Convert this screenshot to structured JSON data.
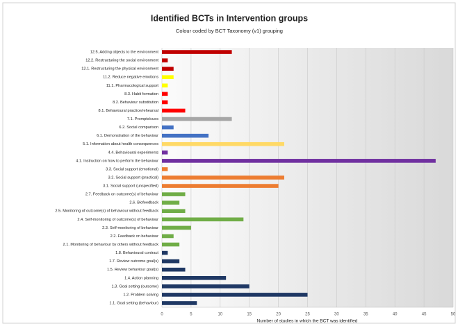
{
  "chart_data": {
    "type": "bar",
    "orientation": "horizontal",
    "title": "Identified BCTs in Intervention groups",
    "subtitle": "Colour coded by BCT Taxonomy (v1) grouping",
    "x_label": "Number of studies in which the BCT was identified",
    "categories": [
      "12.5. Adding objects to the environment",
      "12.2. Restructuring the social environment",
      "12.1. Restructuring the physical environment",
      "11.2. Reduce negative emotions",
      "11.1. Pharmacological support",
      "8.3. Habit formation",
      "8.2. Behaviour substitution",
      "8.1. Behavioural practice/rehearsal",
      "7.1. Prompts/cues",
      "6.2. Social comparison",
      "6.1. Demonstration of the behaviour",
      "5.1. Information about health consequences",
      "4.4. Behavioural experiments",
      "4.1. Instruction on how to perform the behaviour",
      "3.3. Social support (emotional)",
      "3.2. Social support (practical)",
      "3.1. Social support (unspecified)",
      "2.7. Feedback on outcome(s) of behaviour",
      "2.6. Biofeedback",
      "2.5. Monitoring of outcome(s) of behaviour without feedback",
      "2.4. Self-monitoring of outcome(s) of behaviour",
      "2.3. Self-monitoring of behaviour",
      "2.2. Feedback on behaviour",
      "2.1. Monitoring of behaviour by others without feedback",
      "1.8. Behavioural contract",
      "1.7. Review outcome goal(s)",
      "1.5. Review behaviour goal(s)",
      "1.4. Action planning",
      "1.3. Goal setting (outcome)",
      "1.2. Problem solving",
      "1.1. Goal setting (behaviour)"
    ],
    "values": [
      12,
      1,
      2,
      2,
      1,
      1,
      1,
      4,
      12,
      2,
      8,
      21,
      1,
      47,
      1,
      21,
      20,
      4,
      3,
      4,
      14,
      5,
      2,
      3,
      1,
      3,
      4,
      11,
      15,
      25,
      6
    ],
    "colors": [
      "#c00000",
      "#c00000",
      "#c00000",
      "#ffff00",
      "#ffff00",
      "#ff0000",
      "#ff0000",
      "#ff0000",
      "#a6a6a6",
      "#4472c4",
      "#4472c4",
      "#ffd966",
      "#7030a0",
      "#7030a0",
      "#ed7d31",
      "#ed7d31",
      "#ed7d31",
      "#70ad47",
      "#70ad47",
      "#70ad47",
      "#70ad47",
      "#70ad47",
      "#70ad47",
      "#70ad47",
      "#1f3864",
      "#1f3864",
      "#1f3864",
      "#1f3864",
      "#1f3864",
      "#1f3864",
      "#1f3864"
    ],
    "xlim": [
      0,
      50
    ],
    "xticks": [
      0,
      5,
      10,
      15,
      20,
      25,
      30,
      35,
      40,
      45,
      50
    ],
    "grid": true
  }
}
